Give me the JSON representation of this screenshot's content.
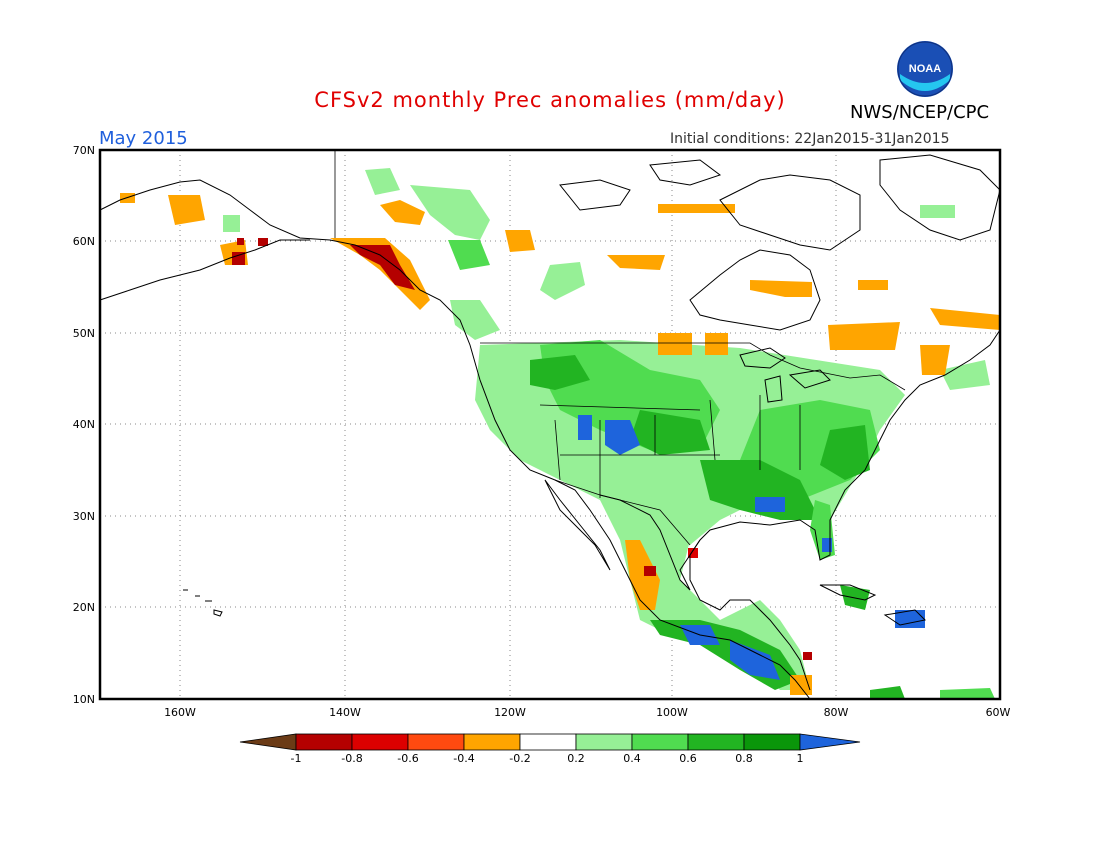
{
  "header": {
    "title": "CFSv2 monthly Prec anomalies (mm/day)",
    "month": "May 2015",
    "initial_conditions": "Initial conditions: 22Jan2015-31Jan2015",
    "agency": "NWS/NCEP/CPC",
    "logo_text": "NOAA"
  },
  "axes": {
    "lat_labels": [
      "70N",
      "60N",
      "50N",
      "40N",
      "30N",
      "20N",
      "10N"
    ],
    "lon_labels": [
      "160W",
      "140W",
      "120W",
      "100W",
      "80W",
      "60W"
    ]
  },
  "colorbar": {
    "labels": [
      "-1",
      "-0.8",
      "-0.6",
      "-0.4",
      "-0.2",
      "0.2",
      "0.4",
      "0.6",
      "0.8",
      "1"
    ],
    "colors": [
      "#6b3b16",
      "#b40000",
      "#dc0000",
      "#ff4a10",
      "#ffa500",
      "#ffffff",
      "#96f096",
      "#50dc50",
      "#22b422",
      "#0a960a",
      "#1e64dc"
    ]
  },
  "colors": {
    "title": "#e00000",
    "month": "#1f5fdc"
  }
}
